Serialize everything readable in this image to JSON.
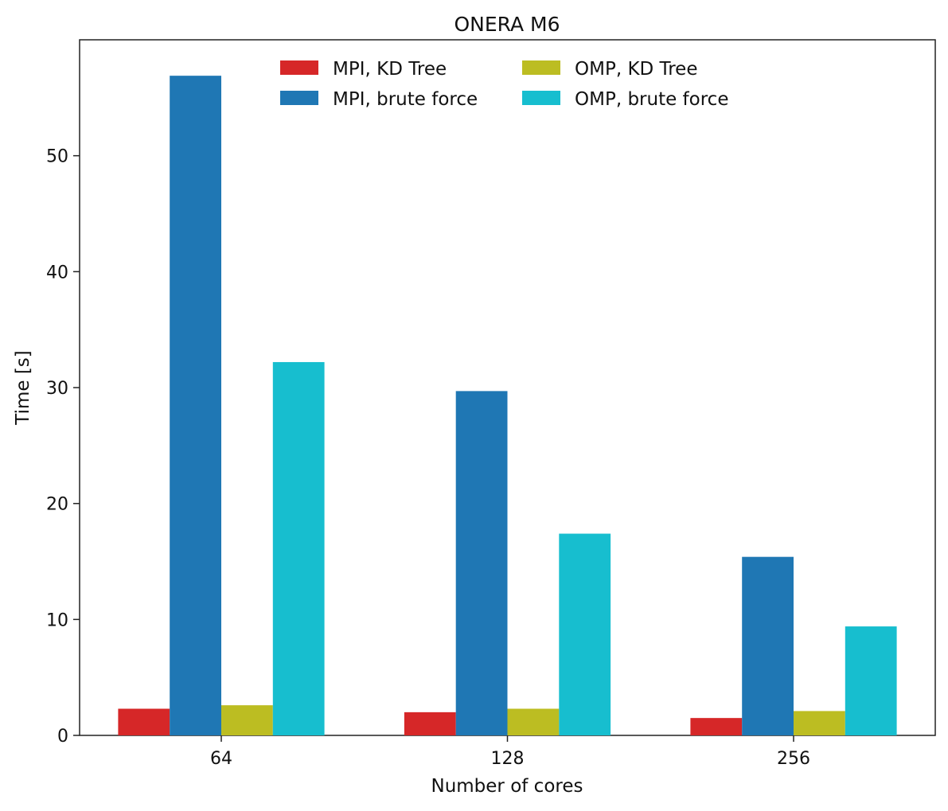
{
  "chart_data": {
    "type": "bar",
    "title": "ONERA M6",
    "xlabel": "Number of cores",
    "ylabel": "Time [s]",
    "categories": [
      "64",
      "128",
      "256"
    ],
    "ylim": [
      0,
      60
    ],
    "yticks": [
      0,
      10,
      20,
      30,
      40,
      50
    ],
    "grid": false,
    "legend_position": "top-center",
    "series": [
      {
        "name": "MPI, KD Tree",
        "color": "#d62728",
        "values": [
          2.3,
          2.0,
          1.5
        ]
      },
      {
        "name": "MPI, brute force",
        "color": "#1f77b4",
        "values": [
          56.9,
          29.7,
          15.4
        ]
      },
      {
        "name": "OMP, KD Tree",
        "color": "#bcbd22",
        "values": [
          2.6,
          2.3,
          2.1
        ]
      },
      {
        "name": "OMP, brute force",
        "color": "#17becf",
        "values": [
          32.2,
          17.4,
          9.4
        ]
      }
    ]
  }
}
